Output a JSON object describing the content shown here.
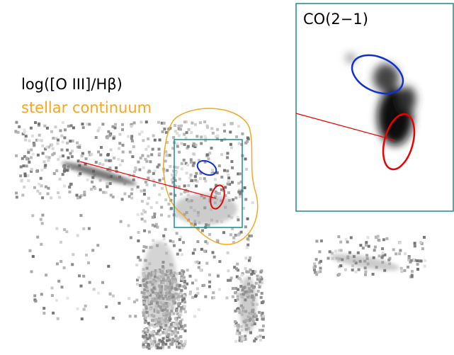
{
  "labels": {
    "ratio": "log([O III]/Hβ)",
    "continuum": "stellar continuum",
    "inset": "CO(2−1)"
  }
}
